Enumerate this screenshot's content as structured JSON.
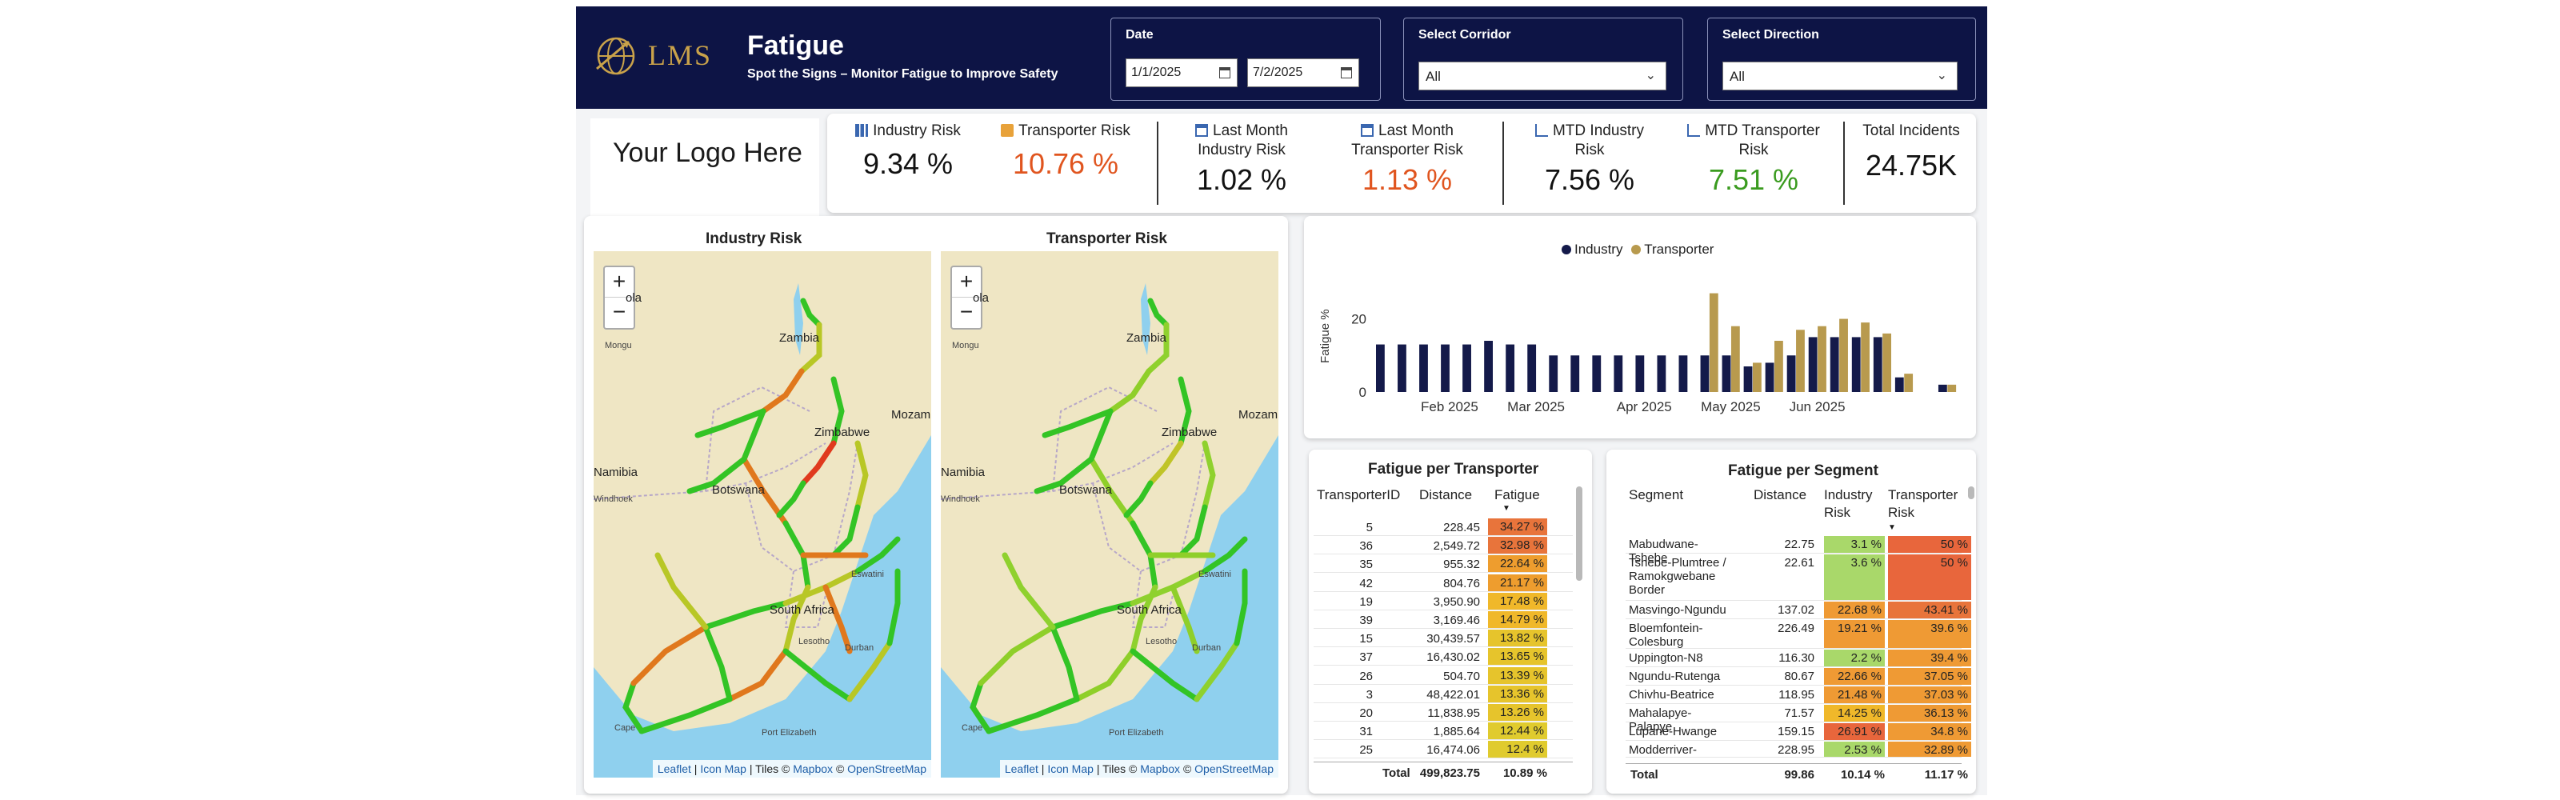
{
  "header": {
    "logo_text": "LMS",
    "title": "Fatigue",
    "subtitle": "Spot the Signs – Monitor Fatigue to Improve Safety",
    "date_filter": {
      "label": "Date",
      "start": "1/1/2025",
      "end": "7/2/2025"
    },
    "corridor_filter": {
      "label": "Select Corridor",
      "value": "All"
    },
    "direction_filter": {
      "label": "Select Direction",
      "value": "All"
    }
  },
  "kpis": {
    "logo_placeholder": "Your Logo Here",
    "industry_risk": {
      "label": "Industry Risk",
      "value": "9.34 %"
    },
    "transporter_risk": {
      "label": "Transporter Risk",
      "value": "10.76 %"
    },
    "last_month_industry": {
      "label1": "Last Month",
      "label2": "Industry Risk",
      "value": "1.02 %"
    },
    "last_month_transporter": {
      "label1": "Last Month",
      "label2": "Transporter Risk",
      "value": "1.13 %"
    },
    "mtd_industry": {
      "label1": "MTD Industry",
      "label2": "Risk",
      "value": "7.56 %"
    },
    "mtd_transporter": {
      "label1": "MTD Transporter",
      "label2": "Risk",
      "value": "7.51 %"
    },
    "total_incidents": {
      "label": "Total Incidents",
      "value": "24.75K"
    }
  },
  "maps": {
    "industry_title": "Industry Risk",
    "transporter_title": "Transporter Risk",
    "zoom_in": "+",
    "zoom_out": "−",
    "place_labels": {
      "zambia": "Zambia",
      "zimbabwe": "Zimbabwe",
      "botswana": "Botswana",
      "namibia": "Namibia",
      "south_africa": "South Africa",
      "lesotho": "Lesotho",
      "eswatini": "Eswatini",
      "mozambique": "Mozam",
      "windhoek": "Windhoek",
      "durban": "Durban",
      "port_elizabeth": "Port Elizabeth",
      "cape": "Cape",
      "mongu": "Mongu",
      "angola": "ola"
    },
    "attribution": {
      "leaflet": "Leaflet",
      "iconmap": "Icon Map",
      "tiles": "Tiles ©",
      "mapbox": "Mapbox",
      "osm": "OpenStreetMap",
      "sep": "|",
      "copy": "©"
    }
  },
  "chart_data": {
    "type": "bar",
    "title": "",
    "xlabel": "",
    "ylabel": "Fatigue %",
    "ylim": [
      0,
      35
    ],
    "yticks": [
      "0",
      "20"
    ],
    "xticks": [
      "Feb 2025",
      "Mar 2025",
      "Apr 2025",
      "May 2025",
      "Jun 2025"
    ],
    "legend_placement": "top-center",
    "colors": {
      "Industry": "#141a4a",
      "Transporter": "#b89a4e"
    },
    "series": [
      {
        "name": "Industry",
        "values": [
          13,
          13,
          13,
          13,
          13,
          14,
          13,
          13,
          10,
          10,
          10,
          10,
          10,
          10,
          10,
          10,
          10,
          7,
          8,
          10,
          15,
          15,
          15,
          15,
          4,
          null,
          2
        ]
      },
      {
        "name": "Transporter",
        "values": [
          null,
          null,
          null,
          null,
          null,
          null,
          null,
          null,
          null,
          null,
          null,
          null,
          null,
          null,
          null,
          27,
          18,
          8,
          14,
          17,
          18,
          20,
          19,
          16,
          5,
          null,
          2
        ]
      }
    ],
    "points_x": [
      "2025-01-12",
      "2025-01-19",
      "2025-01-26",
      "2025-02-02",
      "2025-02-09",
      "2025-02-16",
      "2025-02-23",
      "2025-03-02",
      "2025-03-09",
      "2025-03-16",
      "2025-03-23",
      "2025-03-30",
      "2025-04-06",
      "2025-04-13",
      "2025-04-20",
      "2025-04-27",
      "2025-05-04",
      "2025-05-11",
      "2025-05-18",
      "2025-05-25",
      "2025-06-01",
      "2025-06-08",
      "2025-06-15",
      "2025-06-22",
      "2025-06-29",
      "2025-07-06",
      "2025-07-13"
    ]
  },
  "transporter_table": {
    "title": "Fatigue per Transporter",
    "columns": [
      "TransporterID",
      "Distance",
      "Fatigue"
    ],
    "rows": [
      {
        "id": "5",
        "distance": "228.45",
        "fatigue": "34.27 %",
        "color": "#e8743b"
      },
      {
        "id": "36",
        "distance": "2,549.72",
        "fatigue": "32.98 %",
        "color": "#e8743b"
      },
      {
        "id": "35",
        "distance": "955.32",
        "fatigue": "22.64 %",
        "color": "#ee9d2e"
      },
      {
        "id": "42",
        "distance": "804.76",
        "fatigue": "21.17 %",
        "color": "#ee9d2e"
      },
      {
        "id": "19",
        "distance": "3,950.90",
        "fatigue": "17.48 %",
        "color": "#f0b82a"
      },
      {
        "id": "39",
        "distance": "3,169.46",
        "fatigue": "14.79 %",
        "color": "#f0b82a"
      },
      {
        "id": "15",
        "distance": "30,439.57",
        "fatigue": "13.82 %",
        "color": "#e6c42c"
      },
      {
        "id": "37",
        "distance": "16,430.02",
        "fatigue": "13.65 %",
        "color": "#e6c42c"
      },
      {
        "id": "26",
        "distance": "504.70",
        "fatigue": "13.39 %",
        "color": "#e6c42c"
      },
      {
        "id": "3",
        "distance": "48,422.01",
        "fatigue": "13.36 %",
        "color": "#e6c42c"
      },
      {
        "id": "20",
        "distance": "11,838.95",
        "fatigue": "13.26 %",
        "color": "#e6c42c"
      },
      {
        "id": "31",
        "distance": "1,885.64",
        "fatigue": "12.44 %",
        "color": "#e0cb2e"
      },
      {
        "id": "25",
        "distance": "16,474.06",
        "fatigue": "12.4 %",
        "color": "#e0cb2e"
      }
    ],
    "total": {
      "label": "Total",
      "distance": "499,823.75",
      "fatigue": "10.89 %"
    }
  },
  "segment_table": {
    "title": "Fatigue per Segment",
    "columns": [
      "Segment",
      "Distance",
      "Industry Risk",
      "Transporter Risk"
    ],
    "rows": [
      {
        "segment": "Mabudwane-Tshebe",
        "distance": "22.75",
        "industry": "3.1 %",
        "ind_color": "#a9d86a",
        "transporter": "50 %",
        "tr_color": "#e8663c"
      },
      {
        "segment": "Tshebe-Plumtree / Ramokgwebane Border",
        "distance": "22.61",
        "industry": "3.6 %",
        "ind_color": "#a9d86a",
        "transporter": "50 %",
        "tr_color": "#e8663c"
      },
      {
        "segment": "Masvingo-Ngundu",
        "distance": "137.02",
        "industry": "22.68 %",
        "ind_color": "#ef9a34",
        "transporter": "43.41 %",
        "tr_color": "#e8743b"
      },
      {
        "segment": "Bloemfontein-Colesburg",
        "distance": "226.49",
        "industry": "19.21 %",
        "ind_color": "#ef9a34",
        "transporter": "39.6 %",
        "tr_color": "#ef9a34"
      },
      {
        "segment": "Uppington-N8",
        "distance": "116.30",
        "industry": "2.2 %",
        "ind_color": "#a9d86a",
        "transporter": "39.4 %",
        "tr_color": "#ef9a34"
      },
      {
        "segment": "Ngundu-Rutenga",
        "distance": "80.67",
        "industry": "22.66 %",
        "ind_color": "#ef9a34",
        "transporter": "37.05 %",
        "tr_color": "#ef9a34"
      },
      {
        "segment": "Chivhu-Beatrice",
        "distance": "118.95",
        "industry": "21.48 %",
        "ind_color": "#ef9a34",
        "transporter": "37.03 %",
        "tr_color": "#ef9a34"
      },
      {
        "segment": "Mahalapye-Palapye",
        "distance": "71.57",
        "industry": "14.25 %",
        "ind_color": "#f0b82a",
        "transporter": "36.13 %",
        "tr_color": "#ef9a34"
      },
      {
        "segment": "Lupane-Hwange",
        "distance": "159.15",
        "industry": "26.91 %",
        "ind_color": "#e8663c",
        "transporter": "34.8 %",
        "tr_color": "#ef9a34"
      },
      {
        "segment": "Modderriver-",
        "distance": "228.95",
        "industry": "2.53 %",
        "ind_color": "#a9d86a",
        "transporter": "32.89 %",
        "tr_color": "#ef9a34"
      }
    ],
    "total": {
      "label": "Total",
      "distance": "99.86",
      "industry": "10.14 %",
      "transporter": "11.17 %"
    }
  }
}
